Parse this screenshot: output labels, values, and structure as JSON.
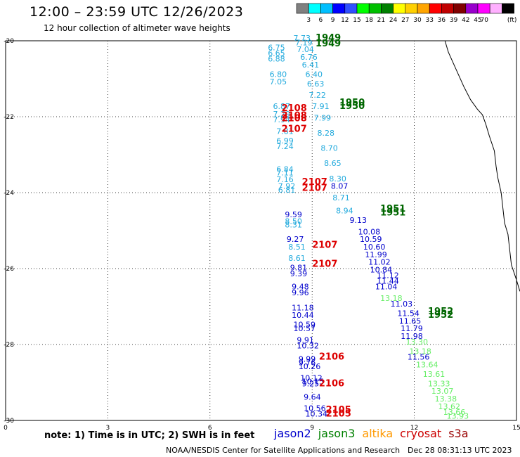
{
  "title": "12:00 – 23:59 UTC 12/26/2023",
  "subtitle": "12 hour collection of altimeter wave heights",
  "note": "note:  1) Time is in UTC;  2) SWH is in feet",
  "credit": "NOAA/NESDIS Center for Satellite Applications and Research",
  "credit_date": "Dec 28 08:31:13 UTC 2023",
  "colorbar": {
    "unit": "(ft)",
    "labels": [
      "3",
      "6",
      "9",
      "12",
      "15",
      "18",
      "21",
      "24",
      "27",
      "30",
      "33",
      "36",
      "39",
      "42",
      "45",
      "70"
    ],
    "colors": [
      "#808080",
      "#00ffff",
      "#00bfff",
      "#0000ff",
      "#3050ff",
      "#00ff00",
      "#00c000",
      "#008000",
      "#ffff00",
      "#ffd000",
      "#ffa500",
      "#ff0000",
      "#c00000",
      "#800000",
      "#9900cc",
      "#ff00ff",
      "#ffb0ff",
      "#000000"
    ]
  },
  "satellites": [
    {
      "name": "jason2",
      "color": "#0000cc"
    },
    {
      "name": "jason3",
      "color": "#008000"
    },
    {
      "name": "altika",
      "color": "#ff9900"
    },
    {
      "name": "cryosat",
      "color": "#cc0000"
    },
    {
      "name": "s3a",
      "color": "#990000"
    }
  ],
  "axes": {
    "x_ticks": [
      "0",
      "3",
      "6",
      "9",
      "12",
      "15"
    ],
    "y_ticks": [
      "-20",
      "-22",
      "-24",
      "-26",
      "-28",
      "-30"
    ],
    "x_range": [
      0,
      15
    ],
    "y_range": [
      -30,
      -20
    ]
  },
  "pass_times": [
    {
      "label": "1949",
      "lon": 9.1,
      "lat": -20.0,
      "color": "#006600"
    },
    {
      "label": "1949",
      "lon": 9.1,
      "lat": -20.15,
      "color": "#006600"
    },
    {
      "label": "1950",
      "lon": 9.8,
      "lat": -21.7,
      "color": "#006600"
    },
    {
      "label": "1950",
      "lon": 9.8,
      "lat": -21.8,
      "color": "#006600"
    },
    {
      "label": "1951",
      "lon": 11.0,
      "lat": -24.5,
      "color": "#006600"
    },
    {
      "label": "1951",
      "lon": 11.0,
      "lat": -24.6,
      "color": "#006600"
    },
    {
      "label": "1952",
      "lon": 12.4,
      "lat": -27.2,
      "color": "#006600"
    },
    {
      "label": "1952",
      "lon": 12.4,
      "lat": -27.3,
      "color": "#006600"
    },
    {
      "label": "2108",
      "lon": 8.1,
      "lat": -21.85,
      "color": "#dd0000"
    },
    {
      "label": "2108",
      "lon": 8.1,
      "lat": -22.05,
      "color": "#dd0000"
    },
    {
      "label": "2108",
      "lon": 8.1,
      "lat": -22.12,
      "color": "#dd0000"
    },
    {
      "label": "2107",
      "lon": 8.1,
      "lat": -22.4,
      "color": "#dd0000"
    },
    {
      "label": "2107",
      "lon": 8.7,
      "lat": -23.8,
      "color": "#dd0000"
    },
    {
      "label": "2107",
      "lon": 8.7,
      "lat": -23.95,
      "color": "#dd0000"
    },
    {
      "label": "2107",
      "lon": 9.0,
      "lat": -25.45,
      "color": "#dd0000"
    },
    {
      "label": "2107",
      "lon": 9.0,
      "lat": -25.95,
      "color": "#dd0000"
    },
    {
      "label": "2106",
      "lon": 9.2,
      "lat": -28.4,
      "color": "#dd0000"
    },
    {
      "label": "2106",
      "lon": 9.2,
      "lat": -29.1,
      "color": "#dd0000"
    },
    {
      "label": "2105",
      "lon": 9.4,
      "lat": -29.8,
      "color": "#dd0000"
    },
    {
      "label": "2105",
      "lon": 9.4,
      "lat": -29.9,
      "color": "#dd0000"
    }
  ],
  "wave_heights": [
    {
      "v": "7.73",
      "lon": 8.45,
      "lat": -20.0,
      "c": "#22aadd"
    },
    {
      "v": "7.19",
      "lon": 8.5,
      "lat": -20.12,
      "c": "#22aadd"
    },
    {
      "v": "7.04",
      "lon": 8.55,
      "lat": -20.3,
      "c": "#22aadd"
    },
    {
      "v": "6.76",
      "lon": 8.65,
      "lat": -20.5,
      "c": "#22aadd"
    },
    {
      "v": "6.41",
      "lon": 8.7,
      "lat": -20.7,
      "c": "#22aadd"
    },
    {
      "v": "6.40",
      "lon": 8.8,
      "lat": -20.95,
      "c": "#22aadd"
    },
    {
      "v": "6.63",
      "lon": 8.85,
      "lat": -21.2,
      "c": "#22aadd"
    },
    {
      "v": "7.22",
      "lon": 8.9,
      "lat": -21.5,
      "c": "#22aadd"
    },
    {
      "v": "7.91",
      "lon": 9.0,
      "lat": -21.8,
      "c": "#22aadd"
    },
    {
      "v": "7.99",
      "lon": 9.05,
      "lat": -22.1,
      "c": "#22aadd"
    },
    {
      "v": "8.28",
      "lon": 9.15,
      "lat": -22.5,
      "c": "#22aadd"
    },
    {
      "v": "8.70",
      "lon": 9.25,
      "lat": -22.9,
      "c": "#22aadd"
    },
    {
      "v": "8.65",
      "lon": 9.35,
      "lat": -23.3,
      "c": "#22aadd"
    },
    {
      "v": "8.30",
      "lon": 9.5,
      "lat": -23.7,
      "c": "#22aadd"
    },
    {
      "v": "8.07",
      "lon": 9.55,
      "lat": -23.9,
      "c": "#0000cc"
    },
    {
      "v": "8.71",
      "lon": 9.6,
      "lat": -24.2,
      "c": "#22aadd"
    },
    {
      "v": "8.94",
      "lon": 9.7,
      "lat": -24.55,
      "c": "#22aadd"
    },
    {
      "v": "9.13",
      "lon": 10.1,
      "lat": -24.8,
      "c": "#0000cc"
    },
    {
      "v": "10.08",
      "lon": 10.35,
      "lat": -25.1,
      "c": "#0000cc"
    },
    {
      "v": "10.59",
      "lon": 10.4,
      "lat": -25.3,
      "c": "#0000cc"
    },
    {
      "v": "10.60",
      "lon": 10.5,
      "lat": -25.5,
      "c": "#0000cc"
    },
    {
      "v": "11.99",
      "lon": 10.55,
      "lat": -25.7,
      "c": "#0000cc"
    },
    {
      "v": "11.02",
      "lon": 10.65,
      "lat": -25.9,
      "c": "#0000cc"
    },
    {
      "v": "10.84",
      "lon": 10.7,
      "lat": -26.1,
      "c": "#0000cc"
    },
    {
      "v": "11.12",
      "lon": 10.9,
      "lat": -26.25,
      "c": "#0000cc"
    },
    {
      "v": "11.44",
      "lon": 10.9,
      "lat": -26.4,
      "c": "#0000cc"
    },
    {
      "v": "11.04",
      "lon": 10.85,
      "lat": -26.55,
      "c": "#0000cc"
    },
    {
      "v": "13.18",
      "lon": 11.0,
      "lat": -26.85,
      "c": "#66ee66"
    },
    {
      "v": "11.03",
      "lon": 11.3,
      "lat": -27.0,
      "c": "#0000cc"
    },
    {
      "v": "11.54",
      "lon": 11.5,
      "lat": -27.25,
      "c": "#0000cc"
    },
    {
      "v": "11.65",
      "lon": 11.55,
      "lat": -27.45,
      "c": "#0000cc"
    },
    {
      "v": "11.79",
      "lon": 11.6,
      "lat": -27.65,
      "c": "#0000cc"
    },
    {
      "v": "11.98",
      "lon": 11.6,
      "lat": -27.85,
      "c": "#0000cc"
    },
    {
      "v": "13.30",
      "lon": 11.75,
      "lat": -28.0,
      "c": "#66ee66"
    },
    {
      "v": "13.18",
      "lon": 11.85,
      "lat": -28.25,
      "c": "#66ee66"
    },
    {
      "v": "11.56",
      "lon": 11.8,
      "lat": -28.4,
      "c": "#0000cc"
    },
    {
      "v": "13.64",
      "lon": 12.05,
      "lat": -28.6,
      "c": "#66ee66"
    },
    {
      "v": "13.61",
      "lon": 12.25,
      "lat": -28.85,
      "c": "#66ee66"
    },
    {
      "v": "13.33",
      "lon": 12.4,
      "lat": -29.1,
      "c": "#66ee66"
    },
    {
      "v": "13.07",
      "lon": 12.5,
      "lat": -29.3,
      "c": "#66ee66"
    },
    {
      "v": "13.38",
      "lon": 12.6,
      "lat": -29.5,
      "c": "#66ee66"
    },
    {
      "v": "13.62",
      "lon": 12.7,
      "lat": -29.7,
      "c": "#66ee66"
    },
    {
      "v": "13.66",
      "lon": 12.85,
      "lat": -29.85,
      "c": "#66ee66"
    },
    {
      "v": "13.93",
      "lon": 12.95,
      "lat": -29.95,
      "c": "#66ee66"
    },
    {
      "v": "6.75",
      "lon": 7.7,
      "lat": -20.25,
      "c": "#22aadd"
    },
    {
      "v": "6.65",
      "lon": 7.7,
      "lat": -20.4,
      "c": "#22aadd"
    },
    {
      "v": "6.88",
      "lon": 7.7,
      "lat": -20.55,
      "c": "#22aadd"
    },
    {
      "v": "6.80",
      "lon": 7.75,
      "lat": -20.95,
      "c": "#22aadd"
    },
    {
      "v": "7.05",
      "lon": 7.75,
      "lat": -21.15,
      "c": "#22aadd"
    },
    {
      "v": "6.87",
      "lon": 7.85,
      "lat": -21.8,
      "c": "#22aadd"
    },
    {
      "v": "7.29",
      "lon": 7.85,
      "lat": -22.0,
      "c": "#22aadd"
    },
    {
      "v": "7.94",
      "lon": 7.85,
      "lat": -22.15,
      "c": "#22aadd"
    },
    {
      "v": "7.81",
      "lon": 7.95,
      "lat": -22.45,
      "c": "#22aadd"
    },
    {
      "v": "6.99",
      "lon": 7.95,
      "lat": -22.7,
      "c": "#22aadd"
    },
    {
      "v": "7.24",
      "lon": 7.95,
      "lat": -22.85,
      "c": "#22aadd"
    },
    {
      "v": "6.84",
      "lon": 7.95,
      "lat": -23.45,
      "c": "#22aadd"
    },
    {
      "v": "7.11",
      "lon": 7.95,
      "lat": -23.55,
      "c": "#22aadd"
    },
    {
      "v": "7.16",
      "lon": 7.95,
      "lat": -23.72,
      "c": "#22aadd"
    },
    {
      "v": "7.92",
      "lon": 8.0,
      "lat": -23.9,
      "c": "#22aadd"
    },
    {
      "v": "6.81",
      "lon": 8.0,
      "lat": -24.0,
      "c": "#22aadd"
    },
    {
      "v": "9.59",
      "lon": 8.2,
      "lat": -24.65,
      "c": "#0000cc"
    },
    {
      "v": "8.50",
      "lon": 8.2,
      "lat": -24.82,
      "c": "#22aadd"
    },
    {
      "v": "8.31",
      "lon": 8.2,
      "lat": -24.92,
      "c": "#22aadd"
    },
    {
      "v": "9.27",
      "lon": 8.25,
      "lat": -25.3,
      "c": "#0000cc"
    },
    {
      "v": "8.51",
      "lon": 8.3,
      "lat": -25.5,
      "c": "#22aadd"
    },
    {
      "v": "8.61",
      "lon": 8.3,
      "lat": -25.8,
      "c": "#22aadd"
    },
    {
      "v": "9.81",
      "lon": 8.35,
      "lat": -26.05,
      "c": "#0000cc"
    },
    {
      "v": "9.39",
      "lon": 8.35,
      "lat": -26.2,
      "c": "#0000cc"
    },
    {
      "v": "9.48",
      "lon": 8.4,
      "lat": -26.55,
      "c": "#0000cc"
    },
    {
      "v": "9.96",
      "lon": 8.4,
      "lat": -26.7,
      "c": "#0000cc"
    },
    {
      "v": "11.18",
      "lon": 8.4,
      "lat": -27.1,
      "c": "#0000cc"
    },
    {
      "v": "10.44",
      "lon": 8.4,
      "lat": -27.3,
      "c": "#0000cc"
    },
    {
      "v": "10.59",
      "lon": 8.45,
      "lat": -27.55,
      "c": "#0000cc"
    },
    {
      "v": "10.57",
      "lon": 8.45,
      "lat": -27.65,
      "c": "#0000cc"
    },
    {
      "v": "9.91",
      "lon": 8.55,
      "lat": -27.95,
      "c": "#0000cc"
    },
    {
      "v": "10.32",
      "lon": 8.55,
      "lat": -28.1,
      "c": "#0000cc"
    },
    {
      "v": "9.99",
      "lon": 8.6,
      "lat": -28.45,
      "c": "#0000cc"
    },
    {
      "v": "9.76",
      "lon": 8.6,
      "lat": -28.55,
      "c": "#0000cc"
    },
    {
      "v": "10.26",
      "lon": 8.6,
      "lat": -28.65,
      "c": "#0000cc"
    },
    {
      "v": "10.12",
      "lon": 8.65,
      "lat": -28.95,
      "c": "#0000cc"
    },
    {
      "v": "10.15",
      "lon": 8.7,
      "lat": -29.05,
      "c": "#0000cc"
    },
    {
      "v": "9.25",
      "lon": 8.7,
      "lat": -29.1,
      "c": "#0000cc"
    },
    {
      "v": "9.64",
      "lon": 8.75,
      "lat": -29.45,
      "c": "#0000cc"
    },
    {
      "v": "10.56",
      "lon": 8.75,
      "lat": -29.75,
      "c": "#0000cc"
    },
    {
      "v": "10.34",
      "lon": 8.8,
      "lat": -29.9,
      "c": "#0000cc"
    }
  ],
  "coastline": [
    [
      12.9,
      -20.0
    ],
    [
      13.0,
      -20.3
    ],
    [
      13.15,
      -20.6
    ],
    [
      13.3,
      -20.9
    ],
    [
      13.45,
      -21.2
    ],
    [
      13.65,
      -21.55
    ],
    [
      13.85,
      -21.8
    ],
    [
      14.0,
      -21.95
    ],
    [
      14.1,
      -22.2
    ],
    [
      14.2,
      -22.5
    ],
    [
      14.35,
      -22.9
    ],
    [
      14.4,
      -23.3
    ],
    [
      14.45,
      -23.6
    ],
    [
      14.55,
      -24.0
    ],
    [
      14.6,
      -24.4
    ],
    [
      14.65,
      -24.8
    ],
    [
      14.75,
      -25.1
    ],
    [
      14.8,
      -25.5
    ],
    [
      14.85,
      -25.9
    ],
    [
      15.0,
      -26.3
    ],
    [
      15.1,
      -26.6
    ]
  ]
}
